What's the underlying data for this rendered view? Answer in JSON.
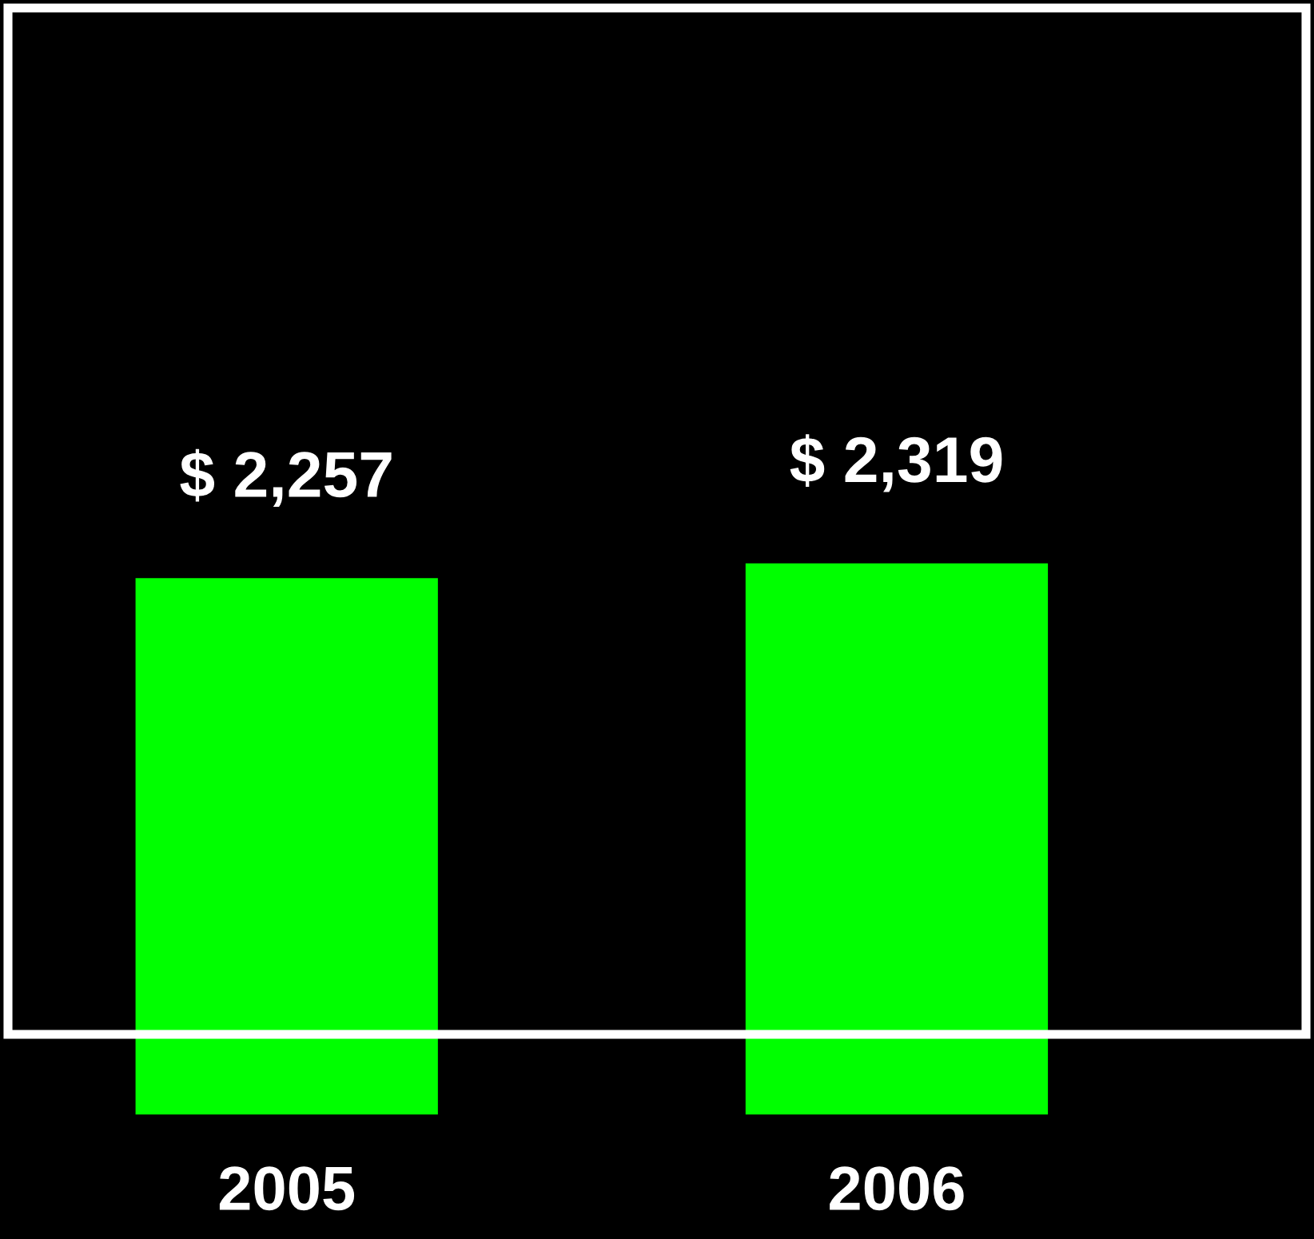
{
  "chart_data": {
    "type": "bar",
    "categories": [
      "2005",
      "2006"
    ],
    "values": [
      2257,
      2319
    ],
    "value_labels": [
      "$ 2,257",
      "$ 2,319"
    ],
    "color": "#00ff00",
    "grid": false,
    "legend": false
  }
}
